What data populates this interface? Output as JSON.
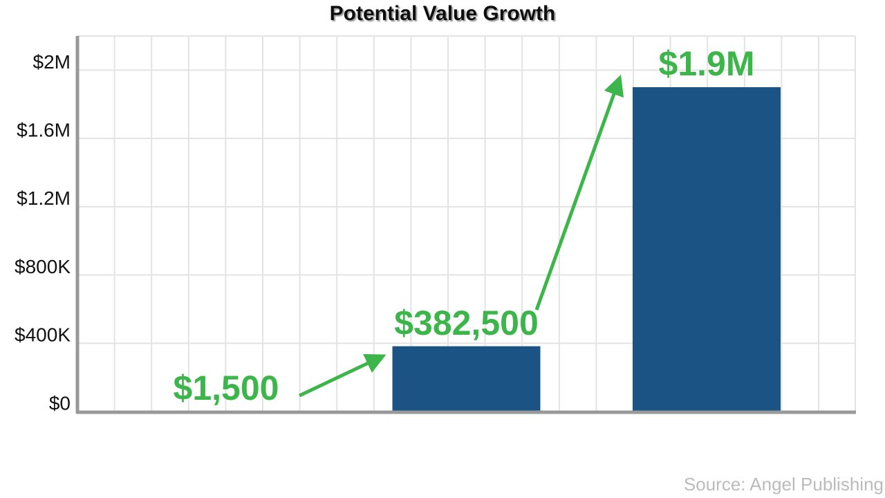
{
  "chart_data": {
    "type": "bar",
    "title": "Potential Value Growth",
    "categories": [
      null,
      null,
      null
    ],
    "values": [
      1500,
      382500,
      1900000
    ],
    "value_labels": [
      "$1,500",
      "$382,500",
      "$1.9M"
    ],
    "color": "#1c5385",
    "label_color": "#3cb54a",
    "ylim": [
      0,
      2200000
    ],
    "yticks": [
      {
        "value": 0,
        "label": "$0"
      },
      {
        "value": 400000,
        "label": "$400K"
      },
      {
        "value": 800000,
        "label": "$800K"
      },
      {
        "value": 1200000,
        "label": "$1.2M"
      },
      {
        "value": 1600000,
        "label": "$1.6M"
      },
      {
        "value": 2000000,
        "label": "$2M"
      }
    ],
    "grid": true,
    "source": "Source: Angel Publishing"
  }
}
